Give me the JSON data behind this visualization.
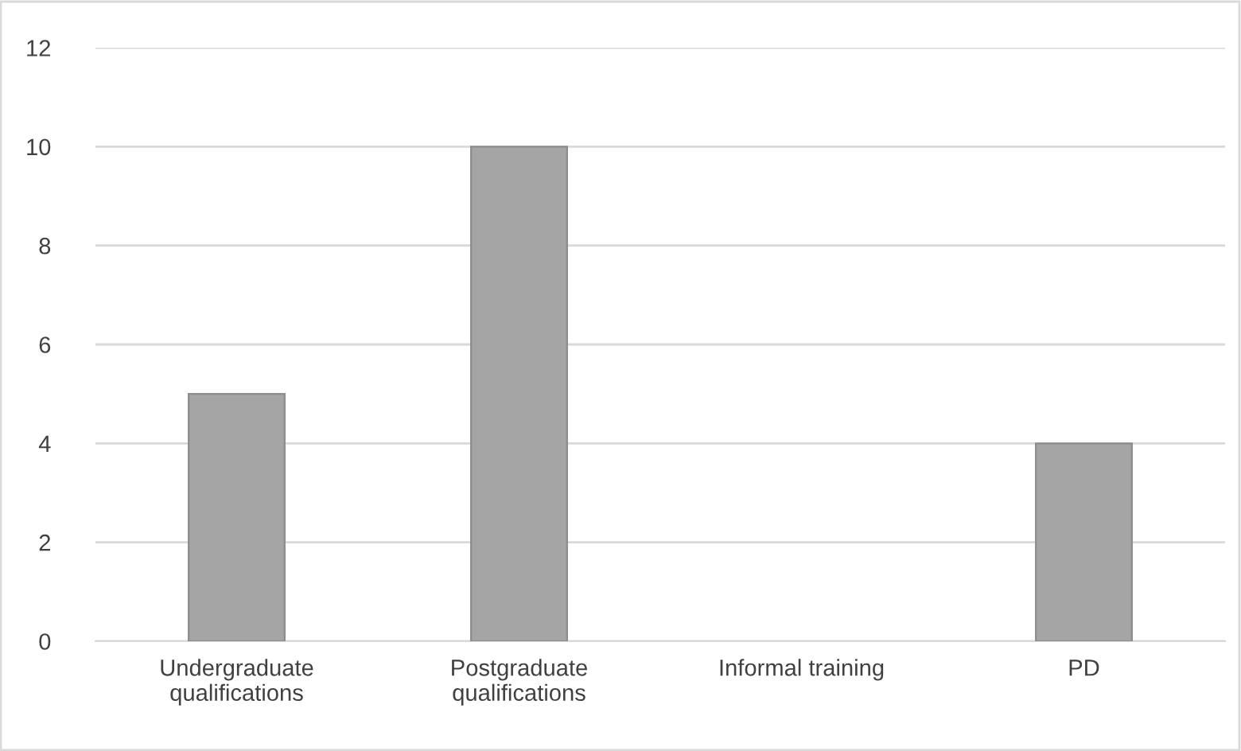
{
  "chart_data": {
    "type": "bar",
    "categories": [
      "Undergraduate\nqualifications",
      "Postgraduate\nqualifications",
      "Informal training",
      "PD"
    ],
    "values": [
      5,
      10,
      0,
      4
    ],
    "color": "#a5a5a5",
    "ylim": [
      0,
      12
    ],
    "yticks": [
      0,
      2,
      4,
      6,
      8,
      10,
      12
    ],
    "grid": "y"
  }
}
